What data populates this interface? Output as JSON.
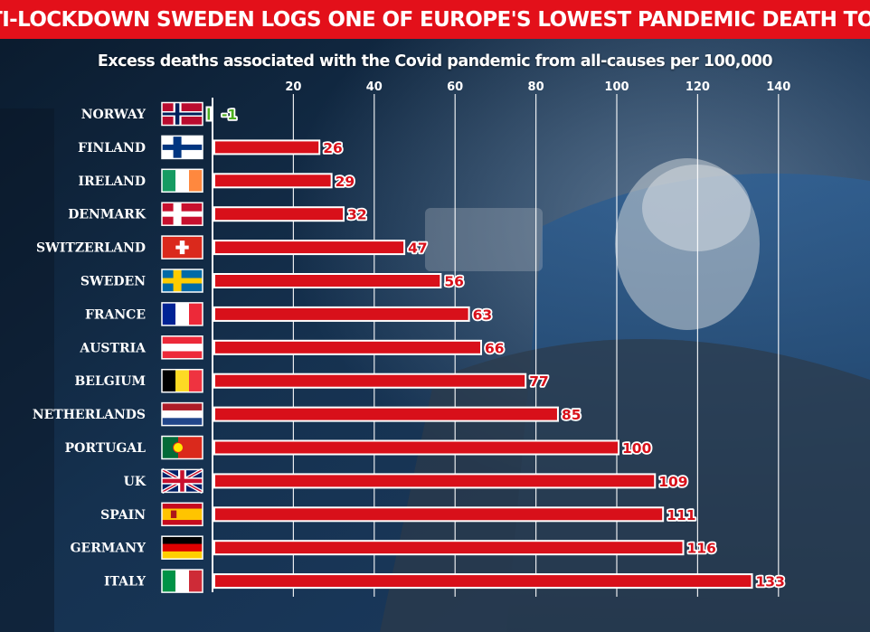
{
  "title": "ANTI-LOCKDOWN SWEDEN LOGS ONE OF EUROPE'S LOWEST PANDEMIC DEATH TOLLS",
  "chart_data": {
    "type": "bar",
    "orientation": "horizontal",
    "title": "Excess deaths associated with the Covid pandemic from all-causes per 100,000",
    "categories": [
      "NORWAY",
      "FINLAND",
      "IRELAND",
      "DENMARK",
      "SWITZERLAND",
      "SWEDEN",
      "FRANCE",
      "AUSTRIA",
      "BELGIUM",
      "NETHERLANDS",
      "PORTUGAL",
      "UK",
      "SPAIN",
      "GERMANY",
      "ITALY"
    ],
    "values": [
      -1,
      26,
      29,
      32,
      47,
      56,
      63,
      66,
      77,
      85,
      100,
      109,
      111,
      116,
      133
    ],
    "data_labels": [
      "-1",
      "26",
      "29",
      "32",
      "47",
      "56",
      "63",
      "66",
      "77",
      "85",
      "100",
      "109",
      "111",
      "116",
      "133"
    ],
    "xticks": [
      20,
      40,
      60,
      80,
      100,
      120,
      140
    ],
    "xlim": [
      0,
      140
    ],
    "grid": true,
    "bar_color": "#d8101a",
    "negative_color": "#4caf1e",
    "legend": "none"
  },
  "colors": {
    "banner": "#e3101a",
    "bar": "#d8101a",
    "bar_outline": "#ffffff",
    "negative": "#4caf1e"
  },
  "flag_icons": [
    "norway-flag-icon",
    "finland-flag-icon",
    "ireland-flag-icon",
    "denmark-flag-icon",
    "switzerland-flag-icon",
    "sweden-flag-icon",
    "france-flag-icon",
    "austria-flag-icon",
    "belgium-flag-icon",
    "netherlands-flag-icon",
    "portugal-flag-icon",
    "uk-flag-icon",
    "spain-flag-icon",
    "germany-flag-icon",
    "italy-flag-icon"
  ]
}
